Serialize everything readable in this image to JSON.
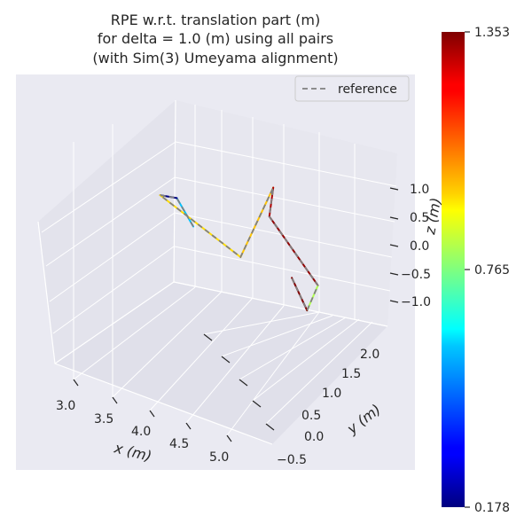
{
  "chart_data": {
    "type": "line",
    "projection": "3d",
    "title_lines": [
      "RPE w.r.t. translation part (m)",
      "for delta = 1.0 (m) using all pairs",
      "(with Sim(3) Umeyama alignment)"
    ],
    "xlabel": "x (m)",
    "ylabel": "y (m)",
    "zlabel": "z (m)",
    "x_ticks": [
      "3.0",
      "3.5",
      "4.0",
      "4.5",
      "5.0"
    ],
    "y_ticks": [
      "−0.5",
      "0.0",
      "0.5",
      "1.0",
      "1.5",
      "2.0"
    ],
    "z_ticks": [
      "1.0",
      "0.5",
      "0.0",
      "−0.5",
      "−1.0"
    ],
    "xlim": [
      2.7,
      5.4
    ],
    "ylim": [
      -0.8,
      2.4
    ],
    "zlim": [
      -1.4,
      1.4
    ],
    "legend": {
      "entries": [
        "reference"
      ],
      "placement": "top-right",
      "style": "dashed grey"
    },
    "colorbar": {
      "colormap": "jet",
      "min": 0.178,
      "max": 1.353,
      "tick_labels": [
        "1.353",
        "0.765",
        "0.178"
      ],
      "tick_values": [
        1.353,
        0.765,
        0.178
      ]
    },
    "reference_path": [
      {
        "x": 3.7,
        "y": 0.75,
        "z": -0.1
      },
      {
        "x": 3.6,
        "y": 0.5,
        "z": 0.5
      },
      {
        "x": 3.62,
        "y": 0.0,
        "z": 0.82
      },
      {
        "x": 4.7,
        "y": 0.0,
        "z": 0.2
      },
      {
        "x": 4.7,
        "y": 0.9,
        "z": 1.0
      },
      {
        "x": 4.55,
        "y": 1.1,
        "z": 0.3
      },
      {
        "x": 5.3,
        "y": 0.9,
        "z": -0.5
      },
      {
        "x": 5.3,
        "y": 0.6,
        "z": -0.8
      },
      {
        "x": 4.9,
        "y": 1.0,
        "z": -0.6
      }
    ],
    "estimate_segments": [
      {
        "from": [
          3.7,
          0.75,
          -0.1
        ],
        "to": [
          3.6,
          0.5,
          0.5
        ],
        "error": 0.55
      },
      {
        "from": [
          3.6,
          0.5,
          0.5
        ],
        "to": [
          3.62,
          0.0,
          0.82
        ],
        "error": 0.18
      },
      {
        "from": [
          3.62,
          0.0,
          0.82
        ],
        "to": [
          4.7,
          0.0,
          0.2
        ],
        "error": 0.95
      },
      {
        "from": [
          4.7,
          0.0,
          0.2
        ],
        "to": [
          4.7,
          0.9,
          1.0
        ],
        "error": 0.98
      },
      {
        "from": [
          4.7,
          0.9,
          1.0
        ],
        "to": [
          4.55,
          1.1,
          0.3
        ],
        "error": 1.3
      },
      {
        "from": [
          4.55,
          1.1,
          0.3
        ],
        "to": [
          5.3,
          0.9,
          -0.5
        ],
        "error": 1.33
      },
      {
        "from": [
          5.3,
          0.9,
          -0.5
        ],
        "to": [
          5.3,
          0.6,
          -0.8
        ],
        "error": 0.82
      },
      {
        "from": [
          5.3,
          0.6,
          -0.8
        ],
        "to": [
          4.9,
          1.0,
          -0.6
        ],
        "error": 1.35
      }
    ]
  }
}
